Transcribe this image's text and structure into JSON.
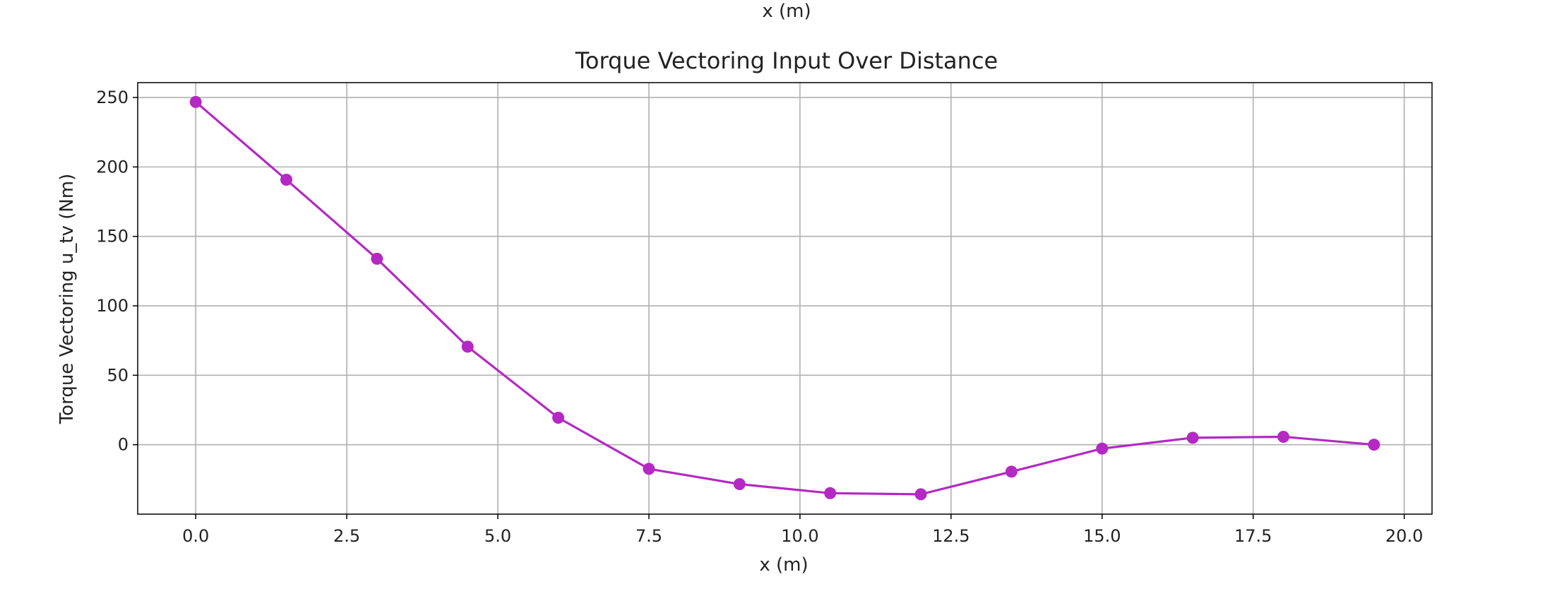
{
  "top_label": "x (m)",
  "chart_data": {
    "type": "line",
    "title": "Torque Vectoring Input Over Distance",
    "xlabel": "x (m)",
    "ylabel": "Torque Vectoring u_tv (Nm)",
    "xlim": [
      -0.96,
      20.46
    ],
    "ylim": [
      -50,
      260.7
    ],
    "x_ticks": [
      0.0,
      2.5,
      5.0,
      7.5,
      10.0,
      12.5,
      15.0,
      17.5,
      20.0
    ],
    "x_tick_labels": [
      "0.0",
      "2.5",
      "5.0",
      "7.5",
      "10.0",
      "12.5",
      "15.0",
      "17.5",
      "20.0"
    ],
    "y_ticks": [
      0,
      50,
      100,
      150,
      200,
      250
    ],
    "y_tick_labels": [
      "0",
      "50",
      "100",
      "150",
      "200",
      "250"
    ],
    "grid": true,
    "line_color": "#b429c3",
    "marker": "circle",
    "series": [
      {
        "x": [
          0.0,
          1.5,
          3.0,
          4.5,
          6.0,
          7.5,
          9.0,
          10.5,
          12.0,
          13.5,
          15.0,
          16.5,
          18.0,
          19.5
        ],
        "values": [
          246.8,
          190.8,
          133.9,
          70.6,
          19.4,
          -17.4,
          -28.4,
          -34.9,
          -35.7,
          -19.4,
          -2.8,
          5.0,
          5.7,
          0.0
        ]
      }
    ]
  }
}
